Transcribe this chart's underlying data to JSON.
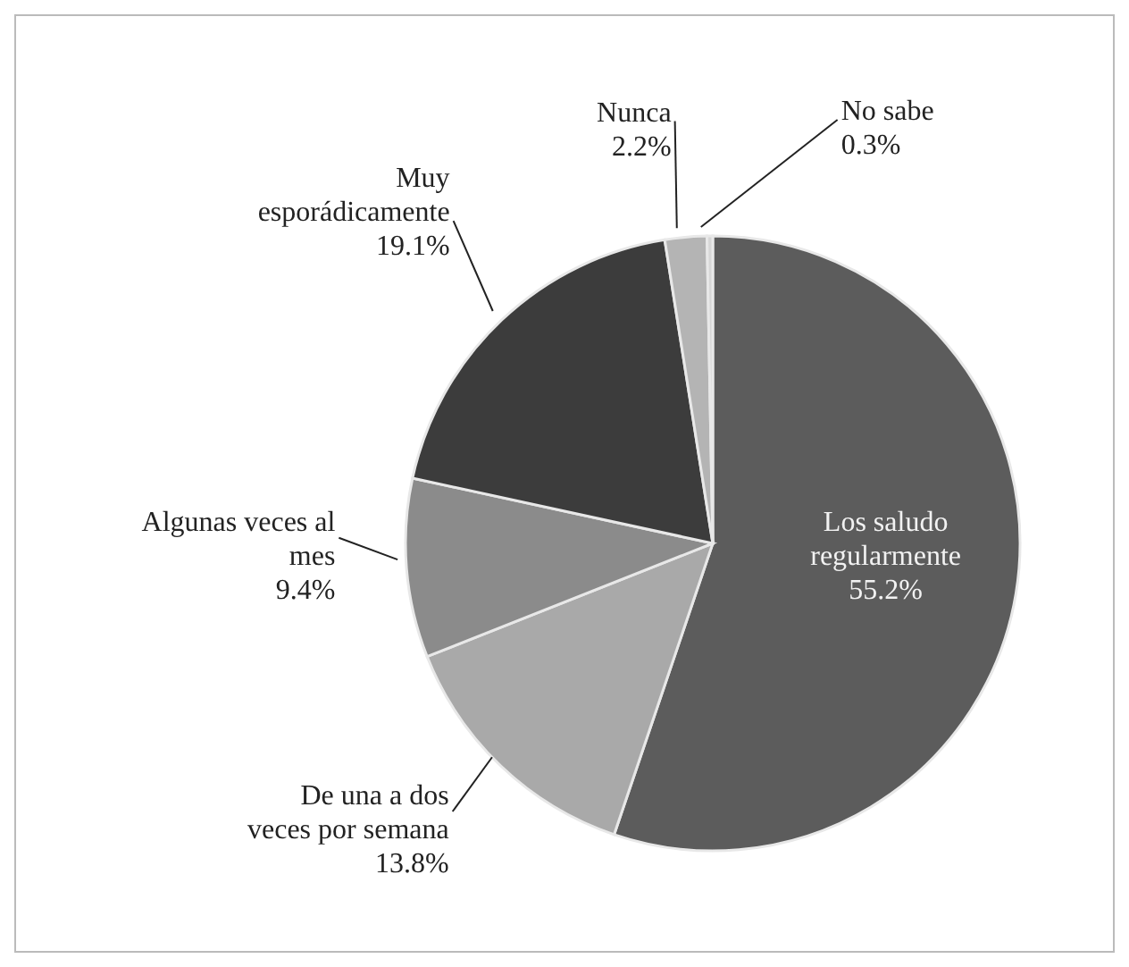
{
  "chart_data": {
    "type": "pie",
    "categories": [
      "Los saludo regularmente",
      "De una a dos veces por semana",
      "Algunas veces al mes",
      "Muy esporádicamente",
      "Nunca",
      "No sabe"
    ],
    "values": [
      55.2,
      13.8,
      9.4,
      19.1,
      2.2,
      0.3
    ],
    "value_labels": [
      "55.2%",
      "13.8%",
      "9.4%",
      "19.1%",
      "2.2%",
      "0.3%"
    ],
    "colors": [
      "#5c5c5c",
      "#a9a9a9",
      "#8b8b8b",
      "#3c3c3c",
      "#b4b4b4",
      "#d6d6d6"
    ],
    "legend": false
  }
}
